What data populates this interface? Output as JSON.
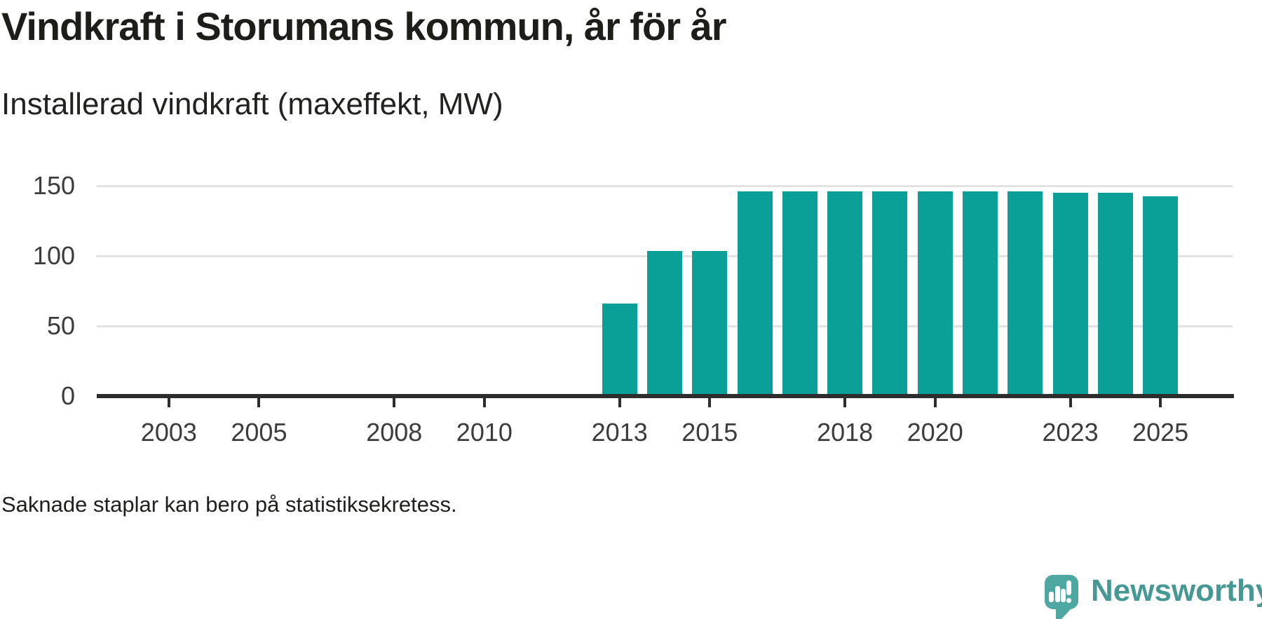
{
  "header": {
    "title": "Vindkraft i Storumans kommun, år för år",
    "subtitle": "Installerad vindkraft (maxeffekt, MW)"
  },
  "footer": {
    "note": "Saknade staplar kan bero på statistiksekretess."
  },
  "brand": {
    "name": "Newsworthy",
    "logo_icon": "bar-chart-speech-bubble-icon",
    "text_color": "#459893",
    "bubble_color": "#4FA7A1"
  },
  "chart_data": {
    "type": "bar",
    "title": "Vindkraft i Storumans kommun, år för år",
    "subtitle": "Installerad vindkraft (maxeffekt, MW)",
    "unit": "MW",
    "categories": [
      2013,
      2014,
      2015,
      2016,
      2017,
      2018,
      2019,
      2020,
      2021,
      2022,
      2023,
      2024,
      2025
    ],
    "values": [
      66,
      103.5,
      103.5,
      146,
      146,
      146,
      146,
      146,
      146,
      146,
      145,
      145,
      142.5
    ],
    "x_tick_labels": [
      2003,
      2005,
      2008,
      2010,
      2013,
      2015,
      2018,
      2020,
      2023,
      2025
    ],
    "y_ticks": [
      0,
      50,
      100,
      150
    ],
    "ylim": [
      0,
      157
    ],
    "x_domain": [
      2001.4,
      2026.6
    ],
    "grid": "horizontal-only",
    "legend": "none",
    "note": "Saknade staplar kan bero på statistiksekretess.",
    "bar_color": "#0AA098",
    "axis_color": "#2D2D2D",
    "grid_color": "#E2E2E2",
    "tick_label_color": "#3C3C3C"
  }
}
